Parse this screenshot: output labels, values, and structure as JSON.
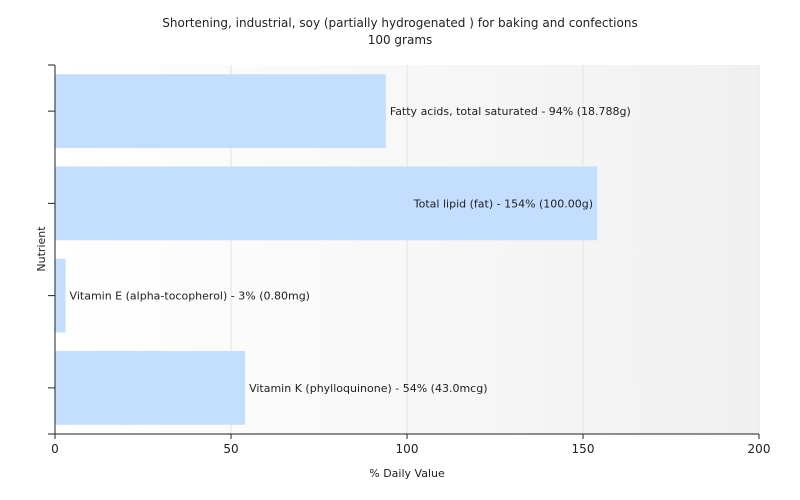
{
  "chart_data": {
    "type": "bar",
    "orientation": "horizontal",
    "title": "Shortening, industrial, soy (partially hydrogenated ) for baking and confections",
    "subtitle": "100 grams",
    "xlabel": "% Daily Value",
    "ylabel": "Nutrient",
    "xlim": [
      0,
      200
    ],
    "xticks": [
      0,
      50,
      100,
      150,
      200
    ],
    "grid": true,
    "bar_color": "#c4deff",
    "categories": [
      "Fatty acids, total saturated",
      "Total lipid (fat)",
      "Vitamin E (alpha-tocopherol)",
      "Vitamin K (phylloquinone)"
    ],
    "values": [
      94,
      154,
      3,
      54
    ],
    "labels": [
      "Fatty acids, total saturated - 94% (18.788g)",
      "Total lipid (fat) - 154% (100.00g)",
      "Vitamin E (alpha-tocopherol) - 3% (0.80mg)",
      "Vitamin K (phylloquinone) - 54% (43.0mcg)"
    ]
  }
}
